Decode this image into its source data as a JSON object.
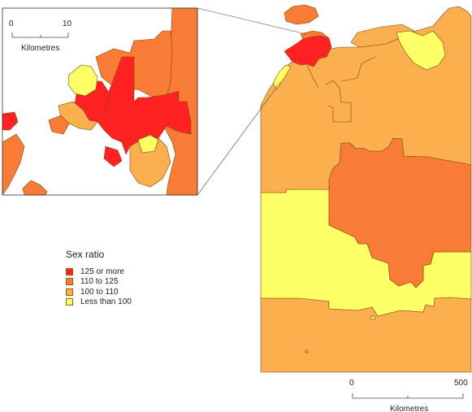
{
  "legend": {
    "title": "Sex ratio",
    "items": [
      {
        "label": "125 or more",
        "color": "#ff2222"
      },
      {
        "label": "110 to 125",
        "color": "#f97b35"
      },
      {
        "label": "100 to 110",
        "color": "#fbaf4f"
      },
      {
        "label": "Less than 100",
        "color": "#ffff66"
      }
    ]
  },
  "main_scale": {
    "start": "0",
    "end": "500",
    "unit": "Kilometres"
  },
  "inset_scale": {
    "start": "0",
    "end": "10",
    "unit": "Kilometres"
  },
  "colors": {
    "high": "#ff2222",
    "upper": "#f97b35",
    "mid": "#fbaf4f",
    "low": "#ffff66",
    "border": "#7a4a10"
  }
}
